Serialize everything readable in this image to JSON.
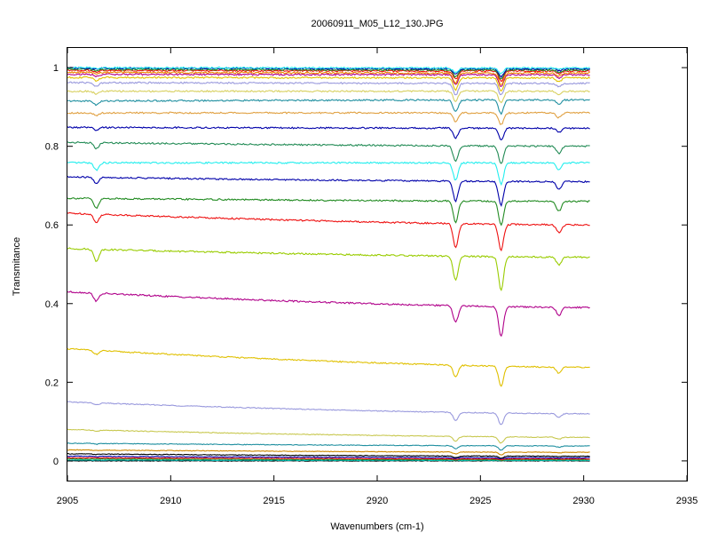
{
  "chart_data": {
    "type": "line",
    "title": "20060911_M05_L12_130.JPG",
    "xlabel": "Wavenumbers (cm-1)",
    "ylabel": "Transmitance",
    "xlim": [
      2905,
      2935
    ],
    "ylim": [
      -0.05,
      1.05
    ],
    "x_data_range": [
      2905,
      2930.3
    ],
    "xticks": [
      "2905",
      "2910",
      "2915",
      "2920",
      "2925",
      "2930",
      "2935"
    ],
    "yticks": [
      "0",
      "0.2",
      "0.4",
      "0.6",
      "0.8",
      "1"
    ],
    "grid": false,
    "legend": "none",
    "absorption_lines_cm1": [
      2906.4,
      2923.8,
      2926.0,
      2928.8
    ],
    "line_widths_cm1": [
      0.12,
      0.12,
      0.12,
      0.12
    ],
    "line_strength_ratios": [
      0.35,
      1.0,
      1.35,
      0.5
    ],
    "series": [
      {
        "color": "#000000",
        "baseline_start": 0.0,
        "baseline_end": 0.0,
        "depths": [
          0.0,
          0.0,
          0.0,
          0.0
        ]
      },
      {
        "color": "#00bcbc",
        "baseline_start": 0.002,
        "baseline_end": 0.001,
        "depths": [
          0.0,
          0.0,
          0.0,
          0.0
        ]
      },
      {
        "color": "#228b22",
        "baseline_start": 0.005,
        "baseline_end": 0.003,
        "depths": [
          0.0,
          0.001,
          0.002,
          0.0
        ]
      },
      {
        "color": "#ee1111",
        "baseline_start": 0.008,
        "baseline_end": 0.005,
        "depths": [
          0.0,
          0.001,
          0.002,
          0.0
        ]
      },
      {
        "color": "#0000aa",
        "baseline_start": 0.012,
        "baseline_end": 0.008,
        "depths": [
          0.001,
          0.002,
          0.003,
          0.001
        ]
      },
      {
        "color": "#000000",
        "baseline_start": 0.018,
        "baseline_end": 0.012,
        "depths": [
          0.001,
          0.004,
          0.005,
          0.001
        ]
      },
      {
        "color": "#cc8800",
        "baseline_start": 0.028,
        "baseline_end": 0.022,
        "depths": [
          0.001,
          0.005,
          0.007,
          0.002
        ]
      },
      {
        "color": "#1f8fa0",
        "baseline_start": 0.045,
        "baseline_end": 0.038,
        "depths": [
          0.002,
          0.008,
          0.011,
          0.003
        ]
      },
      {
        "color": "#c8c850",
        "baseline_start": 0.08,
        "baseline_end": 0.06,
        "depths": [
          0.003,
          0.012,
          0.016,
          0.005
        ]
      },
      {
        "color": "#9999dd",
        "baseline_start": 0.15,
        "baseline_end": 0.12,
        "depths": [
          0.005,
          0.02,
          0.03,
          0.009
        ]
      },
      {
        "color": "#e0c000",
        "baseline_start": 0.285,
        "baseline_end": 0.238,
        "depths": [
          0.01,
          0.03,
          0.05,
          0.015
        ]
      },
      {
        "color": "#b0008a",
        "baseline_start": 0.43,
        "baseline_end": 0.39,
        "depths": [
          0.02,
          0.042,
          0.075,
          0.02
        ]
      },
      {
        "color": "#99cc00",
        "baseline_start": 0.54,
        "baseline_end": 0.518,
        "depths": [
          0.03,
          0.062,
          0.085,
          0.02
        ]
      },
      {
        "color": "#ee1111",
        "baseline_start": 0.63,
        "baseline_end": 0.6,
        "depths": [
          0.022,
          0.06,
          0.065,
          0.02
        ]
      },
      {
        "color": "#228b22",
        "baseline_start": 0.668,
        "baseline_end": 0.66,
        "depths": [
          0.025,
          0.055,
          0.06,
          0.025
        ]
      },
      {
        "color": "#0000aa",
        "baseline_start": 0.722,
        "baseline_end": 0.71,
        "depths": [
          0.015,
          0.05,
          0.06,
          0.02
        ]
      },
      {
        "color": "#22eeee",
        "baseline_start": 0.758,
        "baseline_end": 0.758,
        "depths": [
          0.018,
          0.045,
          0.055,
          0.018
        ]
      },
      {
        "color": "#228b55",
        "baseline_start": 0.81,
        "baseline_end": 0.8,
        "depths": [
          0.015,
          0.04,
          0.045,
          0.018
        ]
      },
      {
        "color": "#0000aa",
        "baseline_start": 0.848,
        "baseline_end": 0.846,
        "depths": [
          0.008,
          0.025,
          0.03,
          0.01
        ]
      },
      {
        "color": "#e0a040",
        "baseline_start": 0.885,
        "baseline_end": 0.885,
        "depths": [
          0.008,
          0.022,
          0.03,
          0.012
        ]
      },
      {
        "color": "#1f8fa0",
        "baseline_start": 0.915,
        "baseline_end": 0.918,
        "depths": [
          0.01,
          0.03,
          0.035,
          0.01
        ]
      },
      {
        "color": "#d8d060",
        "baseline_start": 0.94,
        "baseline_end": 0.94,
        "depths": [
          0.007,
          0.025,
          0.03,
          0.008
        ]
      },
      {
        "color": "#9999dd",
        "baseline_start": 0.962,
        "baseline_end": 0.96,
        "depths": [
          0.01,
          0.03,
          0.03,
          0.008
        ]
      },
      {
        "color": "#e0c000",
        "baseline_start": 0.975,
        "baseline_end": 0.974,
        "depths": [
          0.008,
          0.03,
          0.035,
          0.01
        ]
      },
      {
        "color": "#b0008a",
        "baseline_start": 0.983,
        "baseline_end": 0.982,
        "depths": [
          0.005,
          0.025,
          0.03,
          0.008
        ]
      },
      {
        "color": "#ee8800",
        "baseline_start": 0.988,
        "baseline_end": 0.986,
        "depths": [
          0.005,
          0.025,
          0.03,
          0.008
        ]
      },
      {
        "color": "#ee1111",
        "baseline_start": 0.993,
        "baseline_end": 0.991,
        "depths": [
          0.004,
          0.02,
          0.025,
          0.006
        ]
      },
      {
        "color": "#228b22",
        "baseline_start": 0.996,
        "baseline_end": 0.994,
        "depths": [
          0.004,
          0.018,
          0.022,
          0.006
        ]
      },
      {
        "color": "#0000aa",
        "baseline_start": 0.999,
        "baseline_end": 0.997,
        "depths": [
          0.003,
          0.015,
          0.02,
          0.005
        ]
      },
      {
        "color": "#22eeee",
        "baseline_start": 1.0,
        "baseline_end": 0.999,
        "depths": [
          0.002,
          0.012,
          0.015,
          0.004
        ]
      }
    ]
  }
}
